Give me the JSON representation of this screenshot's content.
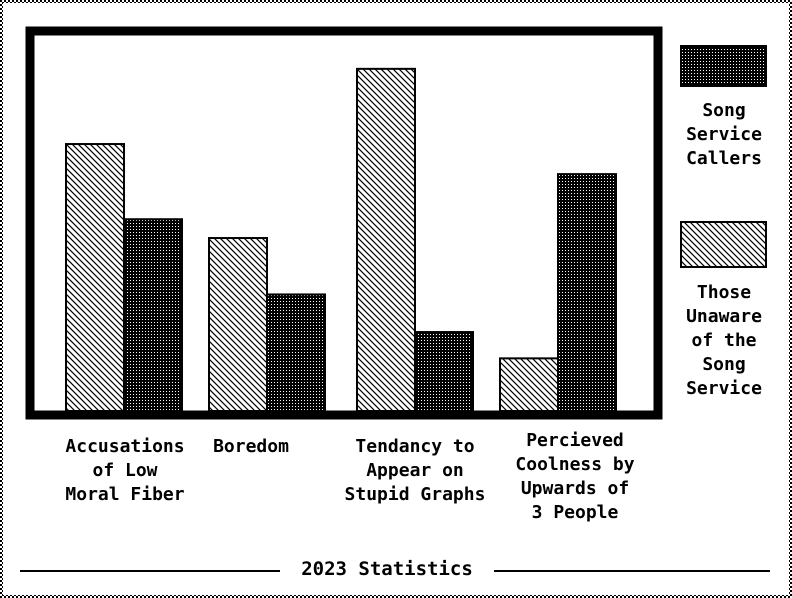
{
  "chart_data": {
    "type": "bar",
    "categories": [
      "Accusations\nof Low\nMoral Fiber",
      "Boredom",
      "Tendancy to\nAppear on\nStupid Graphs",
      "Percieved\nCoolness by\nUpwards of\n3 People"
    ],
    "series": [
      {
        "name": "Those\nUnaware\nof the\nSong\nService",
        "values": [
          71,
          46,
          91,
          14
        ],
        "pattern": "diagonal-hatch"
      },
      {
        "name": "Song\nService\nCallers",
        "values": [
          51,
          31,
          21,
          63
        ],
        "pattern": "dense-dots"
      }
    ],
    "ylim": [
      0,
      100
    ],
    "title": "2023 Statistics",
    "xlabel": "",
    "ylabel": "",
    "grid": false,
    "legend": "right"
  },
  "colors": {
    "ink": "#000000",
    "paper": "#ffffff"
  }
}
